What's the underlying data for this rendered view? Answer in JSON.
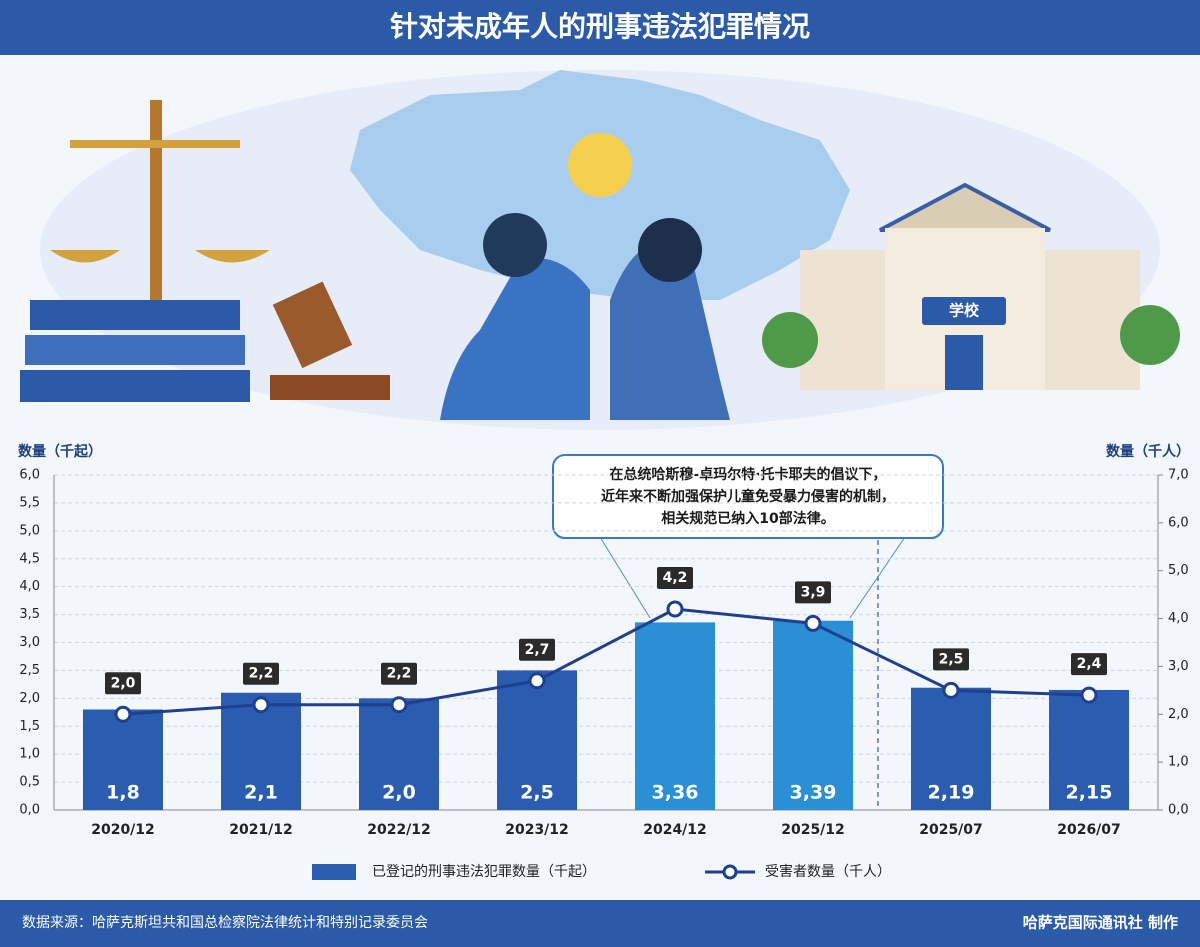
{
  "header": {
    "title": "针对未成年人的刑事违法犯罪情况"
  },
  "illustration": {
    "school_sign": "学校"
  },
  "chart_data": {
    "type": "bar",
    "y_axis_label": "数量（千起）",
    "y2_axis_label": "数量（千人）",
    "categories": [
      "2020/12",
      "2021/12",
      "2022/12",
      "2023/12",
      "2024/12",
      "2025/12",
      "2025/07",
      "2026/07"
    ],
    "series": [
      {
        "name": "已登记的刑事违法犯罪数量（千起）",
        "type": "bar",
        "color": "#2a5db0",
        "colors": [
          "#2a5db0",
          "#2a5db0",
          "#2a5db0",
          "#2a5db0",
          "#2b8fd6",
          "#2b8fd6",
          "#2a5db0",
          "#2a5db0"
        ],
        "values": [
          1.8,
          2.1,
          2.0,
          2.5,
          3.36,
          3.39,
          2.19,
          2.15
        ],
        "value_labels": [
          "1,8",
          "2,1",
          "2,0",
          "2,5",
          "3,36",
          "3,39",
          "2,19",
          "2,15"
        ]
      },
      {
        "name": "受害者数量（千人）",
        "type": "line",
        "axis": "y2",
        "color": "#1f3f8f",
        "values": [
          2.0,
          2.2,
          2.2,
          2.7,
          4.2,
          3.9,
          2.5,
          2.4
        ],
        "value_labels": [
          "2,0",
          "2,2",
          "2,2",
          "2,7",
          "4,2",
          "3,9",
          "2,5",
          "2,4"
        ]
      }
    ],
    "ylim": [
      0,
      6
    ],
    "yticks": [
      {
        "value": 0,
        "label": "0,0"
      },
      {
        "value": 0.5,
        "label": "0,5"
      },
      {
        "value": 1,
        "label": "1,0"
      },
      {
        "value": 1.5,
        "label": "1,5"
      },
      {
        "value": 2,
        "label": "2,0"
      },
      {
        "value": 2.5,
        "label": "2,5"
      },
      {
        "value": 3,
        "label": "3,0"
      },
      {
        "value": 3.5,
        "label": "3,5"
      },
      {
        "value": 4,
        "label": "4,0"
      },
      {
        "value": 4.5,
        "label": "4,5"
      },
      {
        "value": 5,
        "label": "5,0"
      },
      {
        "value": 5.5,
        "label": "5,5"
      },
      {
        "value": 6,
        "label": "6,0"
      }
    ],
    "y2lim": [
      0,
      7
    ],
    "y2ticks": [
      {
        "value": 0,
        "label": "0,0"
      },
      {
        "value": 1,
        "label": "1,0"
      },
      {
        "value": 2,
        "label": "2,0"
      },
      {
        "value": 3,
        "label": "3,0"
      },
      {
        "value": 4,
        "label": "4,0"
      },
      {
        "value": 5,
        "label": "5,0"
      },
      {
        "value": 6,
        "label": "6,0"
      },
      {
        "value": 7,
        "label": "7,0"
      }
    ],
    "grid": true,
    "annotation": [
      "在总统哈斯穆-卓玛尔特·托卡耶夫的倡议下，",
      "近年来不断加强保护儿童免受暴力侵害的机制，",
      "相关规范已纳入10部法律。"
    ]
  },
  "footer": {
    "source": "数据来源：哈萨克斯坦共和国总检察院法律统计和特别记录委员会",
    "credit": "哈萨克国际通讯社 制作"
  }
}
